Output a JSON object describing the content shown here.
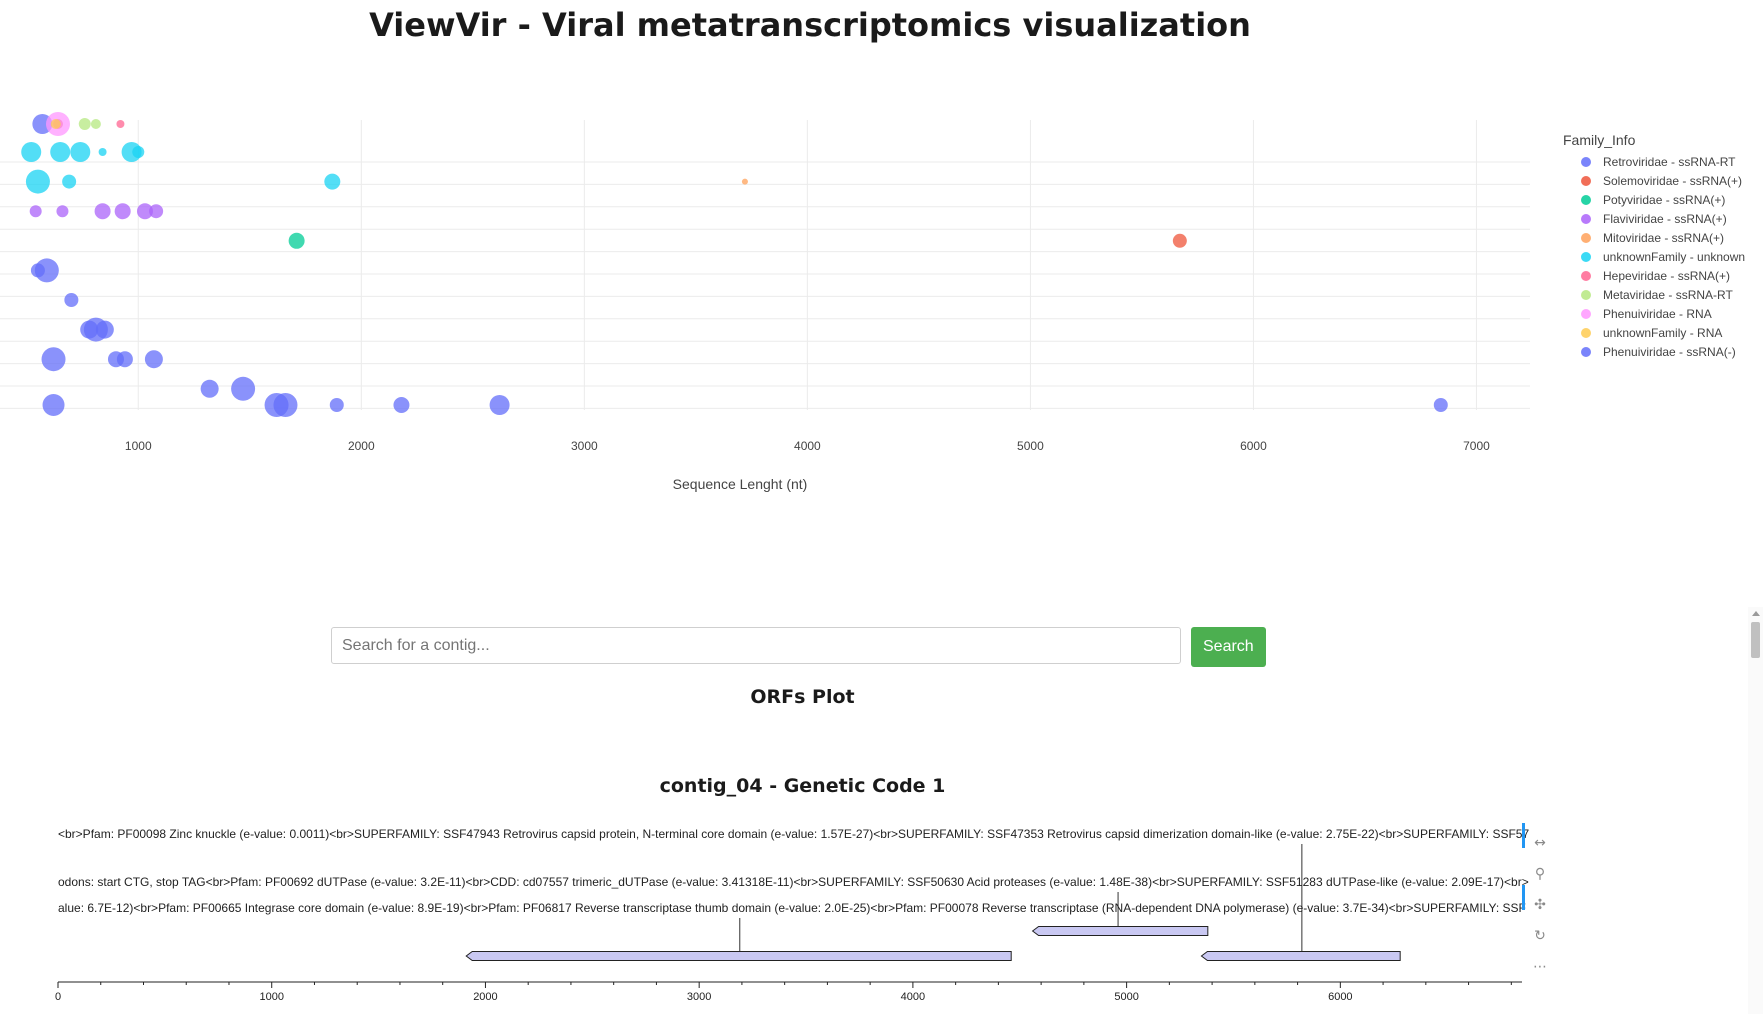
{
  "page": {
    "title": "ViewVir - Viral metatranscriptomics visualization"
  },
  "chart_data": {
    "type": "scatter",
    "xlabel": "Sequence Lenght (nt)",
    "ylabel": "",
    "xlim": [
      380,
      7240
    ],
    "xticks": [
      1000,
      2000,
      3000,
      4000,
      5000,
      6000,
      7000
    ],
    "rows": 12,
    "grid": true,
    "legend_placement": "right",
    "legend_title": "Family_Info",
    "series": [
      {
        "name": "Retroviridae - ssRNA-RT",
        "color": "#636efa",
        "points": [
          {
            "x": 570,
            "row": 11,
            "size": 10
          },
          {
            "x": 550,
            "row": 4,
            "size": 7
          },
          {
            "x": 590,
            "row": 4,
            "size": 12
          },
          {
            "x": 700,
            "row": 3,
            "size": 7
          },
          {
            "x": 780,
            "row": 2,
            "size": 9
          },
          {
            "x": 810,
            "row": 2,
            "size": 12
          },
          {
            "x": 850,
            "row": 2,
            "size": 9
          },
          {
            "x": 900,
            "row": 1,
            "size": 8
          },
          {
            "x": 940,
            "row": 1,
            "size": 8
          },
          {
            "x": 1070,
            "row": 1,
            "size": 9
          },
          {
            "x": 1320,
            "row": 0,
            "size": 9
          },
          {
            "x": 1470,
            "row": 0,
            "size": 12
          },
          {
            "x": 1620,
            "row": -1,
            "size": 12
          },
          {
            "x": 1660,
            "row": -1,
            "size": 12
          },
          {
            "x": 1890,
            "row": -2,
            "size": 7
          },
          {
            "x": 2180,
            "row": -2,
            "size": 8
          },
          {
            "x": 2620,
            "row": -2,
            "size": 10
          },
          {
            "x": 620,
            "row": 1,
            "size": 12
          }
        ]
      },
      {
        "name": "Solemoviridae - ssRNA(+)",
        "color": "#ef553b",
        "points": [
          {
            "x": 5670,
            "row": 5,
            "size": 7
          },
          {
            "x": 640,
            "row": 9,
            "size": 5
          }
        ]
      },
      {
        "name": "Potyviridae - ssRNA(+)",
        "color": "#00cc96",
        "points": [
          {
            "x": 1710,
            "row": 5,
            "size": 8
          }
        ]
      },
      {
        "name": "Flaviviridae - ssRNA(+)",
        "color": "#ab63fa",
        "points": [
          {
            "x": 540,
            "row": 6,
            "size": 6
          },
          {
            "x": 660,
            "row": 6,
            "size": 6
          },
          {
            "x": 840,
            "row": 6,
            "size": 8
          },
          {
            "x": 930,
            "row": 6,
            "size": 8
          },
          {
            "x": 1030,
            "row": 6,
            "size": 8
          },
          {
            "x": 1080,
            "row": 6,
            "size": 7
          }
        ]
      },
      {
        "name": "Mitoviridae - ssRNA(+)",
        "color": "#ffa15a",
        "points": [
          {
            "x": 3720,
            "row": 7,
            "size": 3
          }
        ]
      },
      {
        "name": "unknownFamily - unknown",
        "color": "#19d3f3",
        "points": [
          {
            "x": 520,
            "row": 8,
            "size": 10
          },
          {
            "x": 550,
            "row": 7,
            "size": 12
          },
          {
            "x": 650,
            "row": 8,
            "size": 10
          },
          {
            "x": 740,
            "row": 8,
            "size": 10
          },
          {
            "x": 690,
            "row": 7,
            "size": 7
          },
          {
            "x": 840,
            "row": 8,
            "size": 4
          },
          {
            "x": 970,
            "row": 8,
            "size": 10
          },
          {
            "x": 1000,
            "row": 8,
            "size": 6
          },
          {
            "x": 1870,
            "row": 7,
            "size": 8
          }
        ]
      },
      {
        "name": "Hepeviridae - ssRNA(+)",
        "color": "#ff6692",
        "points": [
          {
            "x": 920,
            "row": 9,
            "size": 4
          }
        ]
      },
      {
        "name": "Metaviridae - ssRNA-RT",
        "color": "#b6e880",
        "points": [
          {
            "x": 760,
            "row": 10,
            "size": 6
          },
          {
            "x": 810,
            "row": 10,
            "size": 5
          }
        ]
      },
      {
        "name": "Phenuiviridae - RNA",
        "color": "#ff97ff",
        "points": [
          {
            "x": 640,
            "row": 10,
            "size": 12
          }
        ]
      },
      {
        "name": "unknownFamily - RNA",
        "color": "#fecb52",
        "points": [
          {
            "x": 630,
            "row": 11,
            "size": 5
          }
        ]
      },
      {
        "name": "Phenuiviridae - ssRNA(-)",
        "color": "#636efa",
        "points": [
          {
            "x": 620,
            "row": -3,
            "size": 11
          },
          {
            "x": 6840,
            "row": -3,
            "size": 7
          }
        ]
      }
    ]
  },
  "search": {
    "placeholder": "Search for a contig...",
    "button_label": "Search"
  },
  "orfs": {
    "section_title": "ORFs Plot",
    "plot_title": "contig_04 - Genetic Code 1",
    "axis_max": 6850,
    "ticks": [
      0,
      1000,
      2000,
      3000,
      4000,
      5000,
      6000
    ],
    "annotation_lines": [
      "<br>Pfam: PF00098 Zinc knuckle (e-value: 0.0011)<br>SUPERFAMILY: SSF47943 Retrovirus capsid protein, N-terminal core domain (e-value: 1.57E-27)<br>SUPERFAMILY: SSF47353 Retrovirus capsid dimerization domain-like (e-value: 2.75E-22)<br>SUPERFAMILY: SSF57",
      "odons: start CTG, stop TAG<br>Pfam: PF00692 dUTPase (e-value: 3.2E-11)<br>CDD: cd07557 trimeric_dUTPase (e-value: 3.41318E-11)<br>SUPERFAMILY: SSF50630 Acid proteases (e-value: 1.48E-38)<br>SUPERFAMILY: SSF51283 dUTPase-like (e-value: 2.09E-17)<br>",
      "alue: 6.7E-12)<br>Pfam: PF00665 Integrase core domain (e-value: 8.9E-19)<br>Pfam: PF06817 Reverse transcriptase thumb domain (e-value: 2.0E-25)<br>Pfam: PF00078 Reverse transcriptase (RNA-dependent DNA polymerase) (e-value: 3.7E-34)<br>SUPERFAMILY: SSF"
    ],
    "features": [
      {
        "start": 4560,
        "end": 5380,
        "strand": -1,
        "label_pos": 4960,
        "ann": 1
      },
      {
        "start": 1910,
        "end": 4460,
        "strand": -1,
        "label_pos": 3190,
        "ann": 2
      },
      {
        "start": 5350,
        "end": 6280,
        "strand": -1,
        "label_pos": 5820,
        "ann": 0
      }
    ],
    "feature_color": "#c9c8f2"
  },
  "toolbar": {
    "icons": [
      "pan-icon",
      "wheel-zoom-icon",
      "box-zoom-icon",
      "reset-icon",
      "more-icon"
    ]
  }
}
